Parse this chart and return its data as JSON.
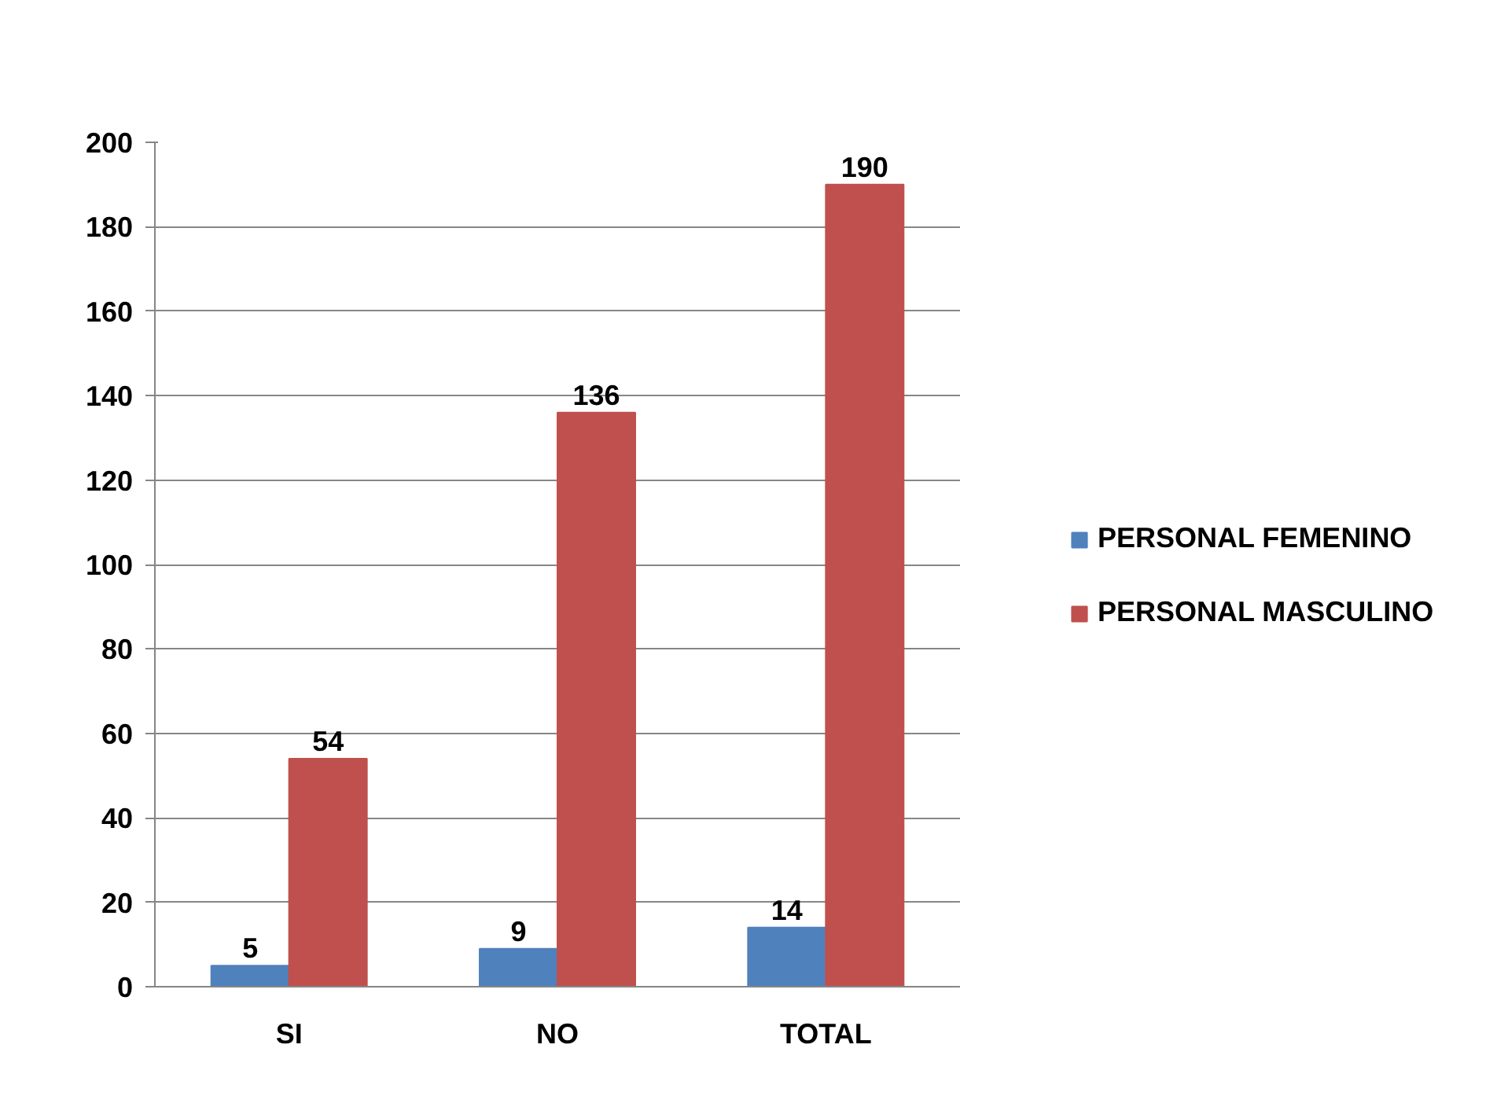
{
  "chart_data": {
    "type": "bar",
    "categories": [
      "SI",
      "NO",
      "TOTAL"
    ],
    "series": [
      {
        "name": "PERSONAL FEMENINO",
        "color": "#4f81bd",
        "values": [
          5,
          9,
          14
        ]
      },
      {
        "name": "PERSONAL MASCULINO",
        "color": "#c0504d",
        "values": [
          54,
          136,
          190
        ]
      }
    ],
    "ylim": [
      0,
      200
    ],
    "yticks": [
      0,
      20,
      40,
      60,
      80,
      100,
      120,
      140,
      160,
      180,
      200
    ],
    "grid": "y",
    "legend": "right",
    "data_labels": true
  }
}
